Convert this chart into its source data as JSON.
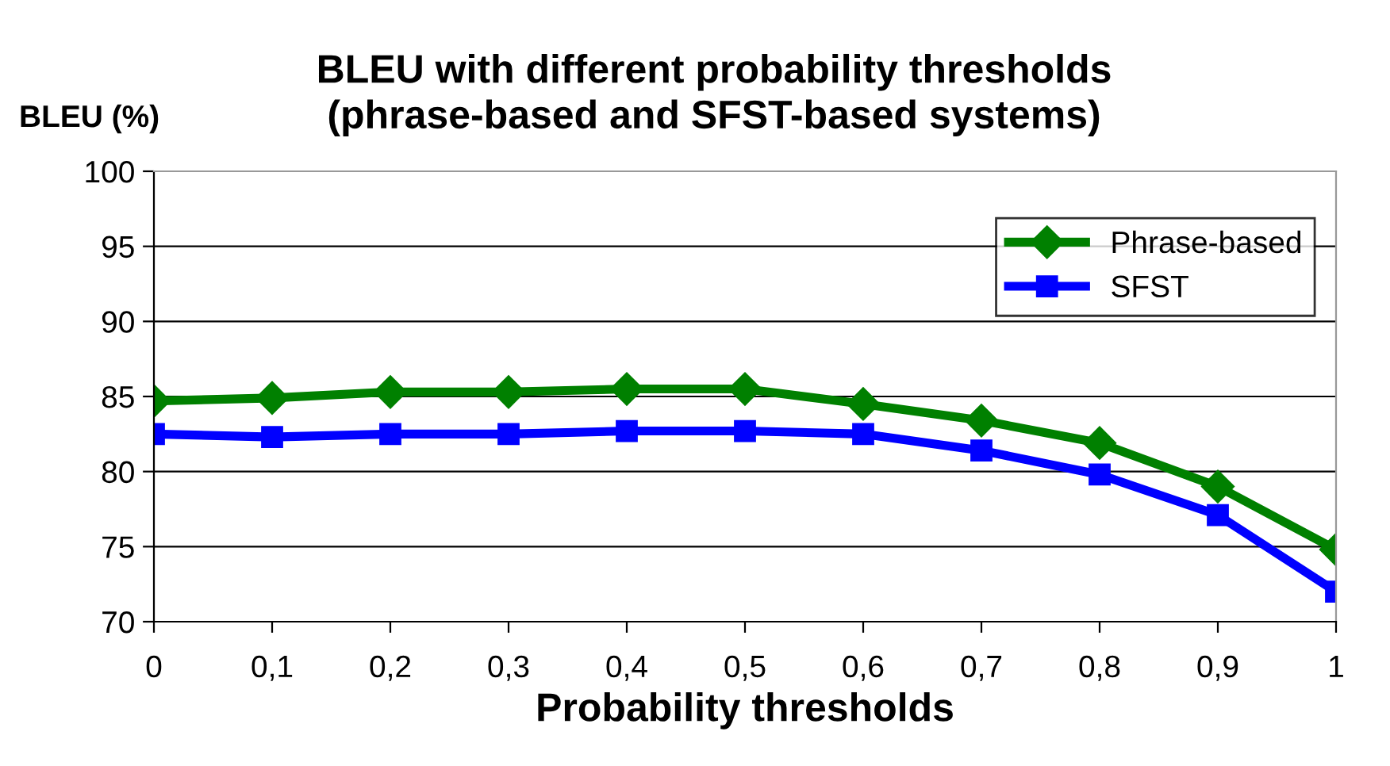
{
  "chart_data": {
    "type": "line",
    "title": "BLEU with different probability thresholds\n(phrase-based and SFST-based systems)",
    "xlabel": "Probability thresholds",
    "ylabel": "BLEU (%)",
    "categories": [
      "0",
      "0,1",
      "0,2",
      "0,3",
      "0,4",
      "0,5",
      "0,6",
      "0,7",
      "0,8",
      "0,9",
      "1"
    ],
    "series": [
      {
        "name": "Phrase-based",
        "color": "#008000",
        "marker": "diamond",
        "values": [
          84.7,
          84.9,
          85.3,
          85.3,
          85.5,
          85.5,
          84.5,
          83.4,
          81.9,
          79.0,
          74.8
        ]
      },
      {
        "name": "SFST",
        "color": "#0000ff",
        "marker": "square",
        "values": [
          82.5,
          82.3,
          82.5,
          82.5,
          82.7,
          82.7,
          82.5,
          81.4,
          79.8,
          77.1,
          72.0
        ]
      }
    ],
    "ylim": [
      70,
      100
    ],
    "yticks": [
      70,
      75,
      80,
      85,
      90,
      95,
      100
    ],
    "grid": "y",
    "legend": "top right",
    "line_style": "solid"
  }
}
